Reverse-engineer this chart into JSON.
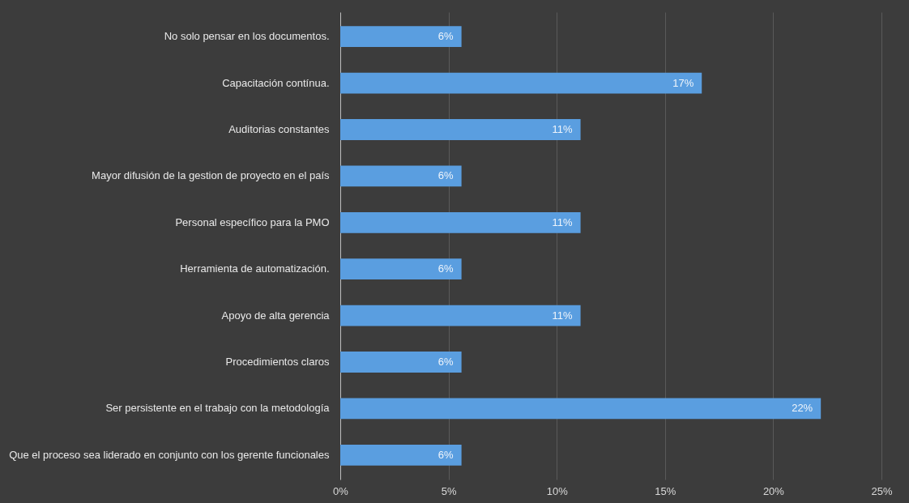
{
  "chart_data": {
    "type": "bar",
    "orientation": "horizontal",
    "categories": [
      "No solo pensar en los documentos.",
      "Capacitación contínua.",
      "Auditorias constantes",
      "Mayor difusión de la gestion de proyecto en el país",
      "Personal específico para la PMO",
      "Herramienta de automatización.",
      "Apoyo de alta gerencia",
      "Procedimientos claros",
      "Ser persistente en el trabajo con la metodología",
      "Que el proceso sea liderado en conjunto con los gerente funcionales"
    ],
    "values": [
      5.6,
      16.7,
      11.1,
      5.6,
      11.1,
      5.6,
      11.1,
      5.6,
      22.2,
      5.6
    ],
    "value_labels": [
      "6%",
      "17%",
      "11%",
      "6%",
      "11%",
      "6%",
      "11%",
      "6%",
      "22%",
      "6%"
    ],
    "color": "#5a9ee0",
    "xlim": [
      0,
      25
    ],
    "xticks": [
      {
        "value": 0,
        "label": "0%"
      },
      {
        "value": 5,
        "label": "5%"
      },
      {
        "value": 10,
        "label": "10%"
      },
      {
        "value": 15,
        "label": "15%"
      },
      {
        "value": 20,
        "label": "20%"
      },
      {
        "value": 25,
        "label": "25%"
      }
    ],
    "grid": "x"
  }
}
